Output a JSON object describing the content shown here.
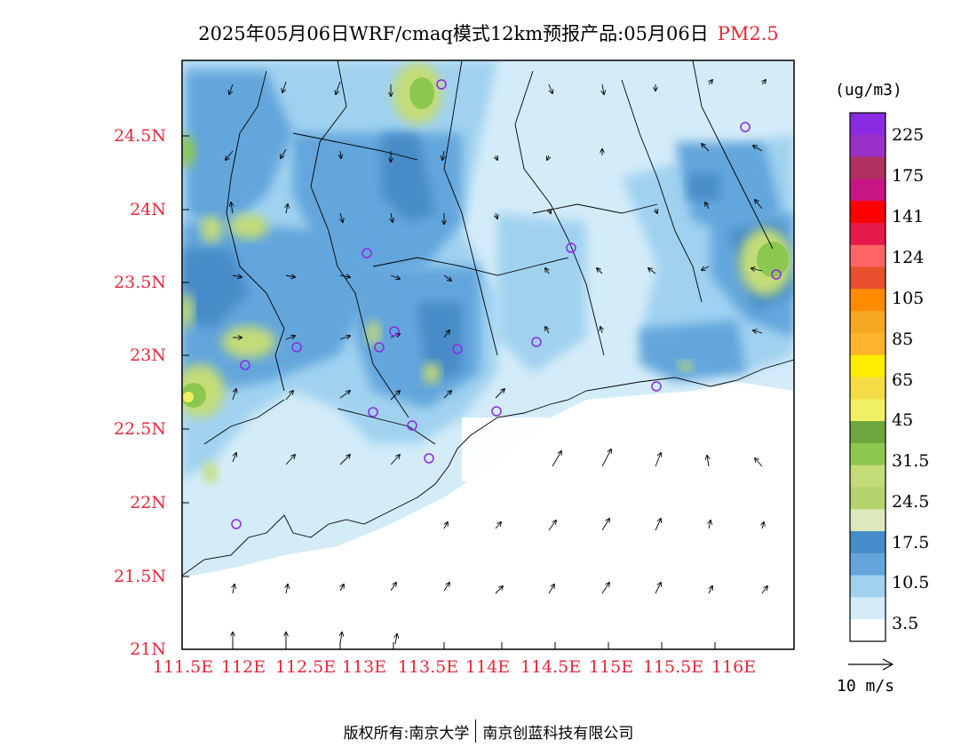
{
  "title": {
    "text": "2025年05月06日WRF/cmaq模式12km预报产品:05月06日",
    "pollutant": "PM2.5"
  },
  "map": {
    "lat_labels": [
      "24.5N",
      "24N",
      "23.5N",
      "23N",
      "22.5N",
      "22N",
      "21.5N",
      "21N"
    ],
    "lon_labels": [
      "111.5E",
      "112E",
      "112.5E",
      "113E",
      "113.5E",
      "114E",
      "114.5E",
      "115E",
      "115.5E",
      "116E"
    ],
    "lat_values": [
      24.5,
      24.0,
      23.5,
      23.0,
      22.5,
      22.0,
      21.5,
      21.0
    ],
    "lon_values": [
      111.5,
      112.0,
      112.5,
      113.0,
      113.5,
      114.0,
      114.5,
      115.0,
      115.5,
      116.0
    ],
    "lat_range": [
      21.0,
      25.0
    ],
    "lon_range": [
      111.5,
      116.7
    ]
  },
  "colorbar": {
    "unit": "(ug/m3)",
    "labels": [
      "225",
      "175",
      "141",
      "124",
      "105",
      "85",
      "65",
      "45",
      "31.5",
      "24.5",
      "17.5",
      "10.5",
      "3.5"
    ],
    "colors": [
      "#8a2be2",
      "#9b30c8",
      "#b03060",
      "#c71585",
      "#ff0000",
      "#e6194b",
      "#ff6464",
      "#e8502d",
      "#ff8c00",
      "#f5a623",
      "#ffb42d",
      "#ffee00",
      "#f5dc46",
      "#f0f064",
      "#6ea53c",
      "#8cc850",
      "#c3dc78",
      "#b4d26e",
      "#dde9bb",
      "#468cc8",
      "#64a6dc",
      "#a0d2f0",
      "#d4ecf8",
      "#ffffff"
    ]
  },
  "wind_reference": {
    "label": "10 m/s"
  },
  "footer": {
    "left": "版权所有:南京大学",
    "right": "南京创蓝科技有限公司"
  },
  "colors": {
    "axis_label": "#e8283c",
    "marker": "#8a2be2"
  }
}
